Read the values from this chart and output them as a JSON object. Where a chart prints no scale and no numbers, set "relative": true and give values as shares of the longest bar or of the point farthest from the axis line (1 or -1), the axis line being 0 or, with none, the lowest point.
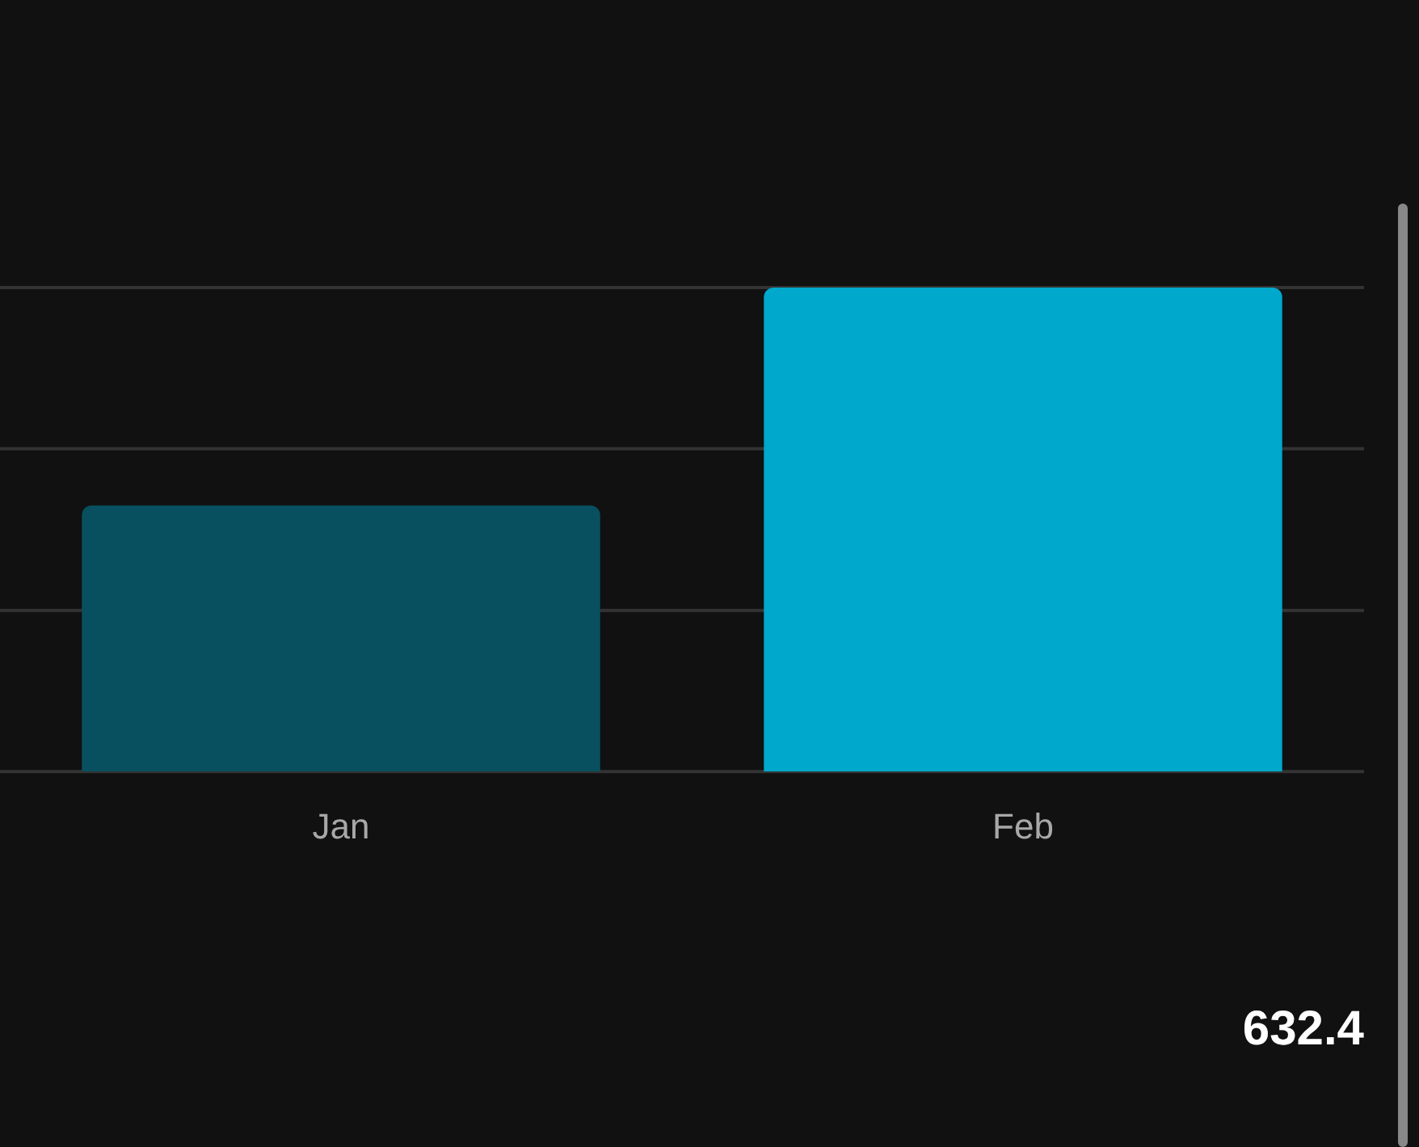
{
  "chart_data": {
    "type": "bar",
    "categories": [
      "Jan",
      "Feb"
    ],
    "values": [
      0.55,
      1
    ],
    "colors": [
      "#08505f",
      "#00a8cc"
    ],
    "relative": true,
    "ref_lines": [
      {
        "axis": "y",
        "value": 0,
        "color": "#333333"
      },
      {
        "axis": "y",
        "value": 0.333,
        "color": "#333333"
      },
      {
        "axis": "y",
        "value": 0.667,
        "color": "#333333"
      },
      {
        "axis": "y",
        "value": 1,
        "color": "#333333"
      }
    ],
    "annotations": [
      "632.4"
    ]
  }
}
